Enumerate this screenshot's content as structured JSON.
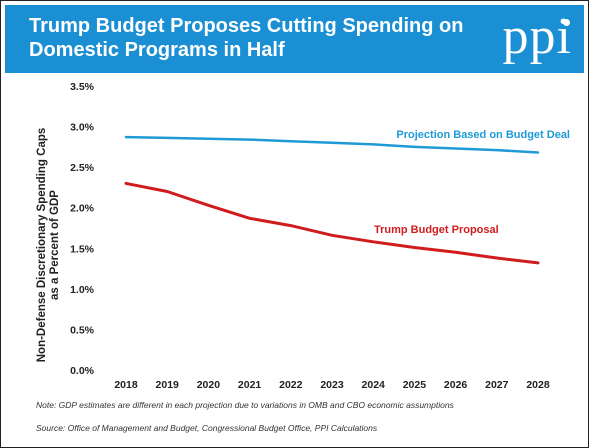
{
  "header": {
    "title_line1": "Trump Budget Proposes Cutting Spending on",
    "title_line2": "Domestic Programs in Half",
    "logo_text": "ppi"
  },
  "chart_data": {
    "type": "line",
    "title": "",
    "xlabel": "",
    "ylabel": "Non-Defense Discretionary Spending Caps as a Percent of GDP",
    "x": [
      2018,
      2019,
      2020,
      2021,
      2022,
      2023,
      2024,
      2025,
      2026,
      2027,
      2028
    ],
    "ylim": [
      0,
      3.5
    ],
    "yticks": [
      "0.0%",
      "0.5%",
      "1.0%",
      "1.5%",
      "2.0%",
      "2.5%",
      "3.0%",
      "3.5%"
    ],
    "xticks": [
      "2018",
      "2019",
      "2020",
      "2021",
      "2022",
      "2023",
      "2024",
      "2025",
      "2026",
      "2027",
      "2028"
    ],
    "grid": false,
    "series": [
      {
        "name": "Projection Based on Budget Deal",
        "color": "#1f9ad6",
        "values": [
          2.87,
          2.86,
          2.85,
          2.84,
          2.82,
          2.8,
          2.78,
          2.75,
          2.73,
          2.71,
          2.68
        ]
      },
      {
        "name": "Trump Budget Proposal",
        "color": "#d01c1c",
        "values": [
          2.3,
          2.2,
          2.03,
          1.87,
          1.78,
          1.66,
          1.58,
          1.51,
          1.45,
          1.38,
          1.32
        ]
      }
    ]
  },
  "footer": {
    "note": "Note: GDP estimates are different in each projection due to variations in OMB and CBO economic assumptions",
    "source": "Source: Office of Management and Budget, Congressional Budget Office, PPI Calculations"
  }
}
